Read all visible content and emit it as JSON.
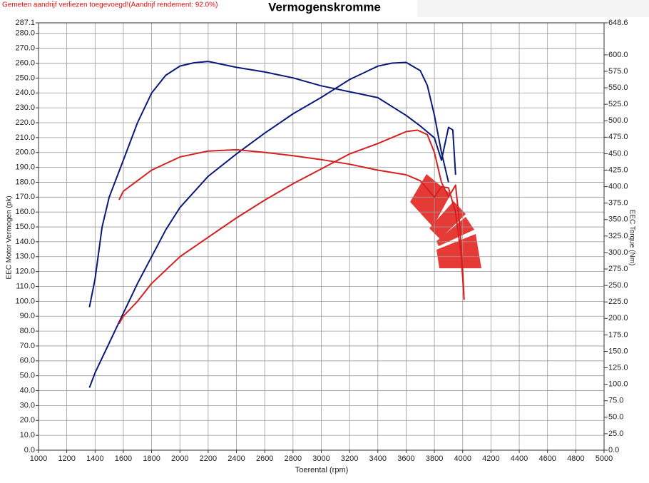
{
  "chart_data": {
    "type": "line",
    "note_text": "Gemeten aandrijf verliezen toegevoegd!(Aandrijf rendement: 92.0%)",
    "title": "Vermogenskromme",
    "x_label": "Toerental (rpm)",
    "y_label": "EEC Motor Vermogen (pk)",
    "y2_label": "EEC Torque (Nm)",
    "grid": true,
    "xlim": [
      1000,
      5000
    ],
    "xticks": [
      1000,
      1200,
      1400,
      1600,
      1800,
      2000,
      2200,
      2400,
      2600,
      2800,
      3000,
      3200,
      3400,
      3600,
      3800,
      4000,
      4200,
      4400,
      4600,
      4800,
      5000
    ],
    "ylim": [
      0,
      287.1
    ],
    "yticks": [
      {
        "value": 0,
        "label": "0.0"
      },
      {
        "value": 10,
        "label": "10.0"
      },
      {
        "value": 20,
        "label": "20.0"
      },
      {
        "value": 30,
        "label": "30.0"
      },
      {
        "value": 40,
        "label": "40.0"
      },
      {
        "value": 50,
        "label": "50.0"
      },
      {
        "value": 60,
        "label": "60.0"
      },
      {
        "value": 70,
        "label": "70.0"
      },
      {
        "value": 80,
        "label": "80.0"
      },
      {
        "value": 90,
        "label": "90.0"
      },
      {
        "value": 100,
        "label": "100.0"
      },
      {
        "value": 110,
        "label": "110.0"
      },
      {
        "value": 120,
        "label": "120.0"
      },
      {
        "value": 130,
        "label": "130.0"
      },
      {
        "value": 140,
        "label": "140.0"
      },
      {
        "value": 150,
        "label": "150.0"
      },
      {
        "value": 160,
        "label": "160.0"
      },
      {
        "value": 170,
        "label": "170.0"
      },
      {
        "value": 180,
        "label": "180.0"
      },
      {
        "value": 190,
        "label": "190.0"
      },
      {
        "value": 200,
        "label": "200.0"
      },
      {
        "value": 210,
        "label": "210.0"
      },
      {
        "value": 220,
        "label": "220.0"
      },
      {
        "value": 230,
        "label": "230.0"
      },
      {
        "value": 240,
        "label": "240.0"
      },
      {
        "value": 250,
        "label": "250.0"
      },
      {
        "value": 260,
        "label": "260.0"
      },
      {
        "value": 270,
        "label": "270.0"
      },
      {
        "value": 280,
        "label": "280.0"
      },
      287.1
    ],
    "y2lim": [
      0,
      648.6
    ],
    "y2ticks": [
      {
        "value": 0,
        "label": "0.0"
      },
      {
        "value": 25,
        "label": "25.0"
      },
      {
        "value": 50,
        "label": "50.0"
      },
      {
        "value": 75,
        "label": "75.0"
      },
      {
        "value": 100,
        "label": "100.0"
      },
      {
        "value": 125,
        "label": "125.0"
      },
      {
        "value": 150,
        "label": "150.0"
      },
      {
        "value": 175,
        "label": "175.0"
      },
      {
        "value": 200,
        "label": "200.0"
      },
      {
        "value": 225,
        "label": "225.0"
      },
      {
        "value": 250,
        "label": "250.0"
      },
      {
        "value": 275,
        "label": "275.0"
      },
      {
        "value": 300,
        "label": "300.0"
      },
      {
        "value": 325,
        "label": "325.0"
      },
      {
        "value": 350,
        "label": "350.0"
      },
      {
        "value": 375,
        "label": "375.0"
      },
      {
        "value": 400,
        "label": "400.0"
      },
      {
        "value": 425,
        "label": "425.0"
      },
      {
        "value": 450,
        "label": "450.0"
      },
      {
        "value": 475,
        "label": "475.0"
      },
      {
        "value": 500,
        "label": "500.0"
      },
      {
        "value": 525,
        "label": "525.0"
      },
      {
        "value": 550,
        "label": "550.0"
      },
      {
        "value": 575,
        "label": "575.0"
      },
      {
        "value": 600,
        "label": "600.0"
      },
      648.6
    ],
    "series": [
      {
        "color": "#0a1a7a",
        "axis": "y2",
        "x": [
          1360,
          1400,
          1450,
          1500,
          1600,
          1700,
          1800,
          1900,
          2000,
          2100,
          2200,
          2400,
          2600,
          2800,
          3000,
          3200,
          3400,
          3600,
          3700,
          3800,
          3850,
          3900,
          3930,
          3950
        ],
        "values": [
          217,
          260,
          339,
          384,
          440,
          497,
          542,
          569,
          583,
          588,
          590,
          581,
          574,
          565,
          553,
          544,
          535,
          508,
          492,
          474,
          440,
          490,
          486,
          418
        ]
      },
      {
        "color": "#0a1a7a",
        "x": [
          1360,
          1400,
          1500,
          1600,
          1700,
          1800,
          1900,
          2000,
          2200,
          2400,
          2600,
          2800,
          3000,
          3200,
          3400,
          3500,
          3600,
          3700,
          3750,
          3800,
          3850,
          3900
        ],
        "values": [
          42,
          52,
          72,
          92,
          112,
          130,
          148,
          163,
          184,
          199,
          213,
          226,
          237,
          249,
          258,
          260,
          260.5,
          255,
          245,
          225,
          200,
          180
        ]
      },
      {
        "color": "#d42020",
        "axis": "y2",
        "x": [
          1570,
          1600,
          1800,
          2000,
          2200,
          2400,
          2600,
          2800,
          3000,
          3200,
          3400,
          3600,
          3700,
          3800,
          3850,
          3900,
          3950,
          3990,
          4010
        ],
        "values": [
          380,
          393,
          425,
          445,
          454,
          456,
          452,
          447,
          441,
          434,
          425,
          418,
          409,
          384,
          400,
          398,
          361,
          294,
          230
        ]
      },
      {
        "color": "#d42020",
        "x": [
          1570,
          1600,
          1700,
          1800,
          2000,
          2200,
          2400,
          2600,
          2800,
          3000,
          3200,
          3400,
          3600,
          3680,
          3750,
          3800,
          3850,
          3900,
          3950,
          3980,
          4000,
          4010
        ],
        "values": [
          85,
          90,
          100,
          112,
          130,
          143,
          156,
          168,
          179,
          189,
          199,
          206,
          214,
          215,
          212,
          200,
          180,
          170,
          178,
          150,
          120,
          101
        ]
      }
    ]
  }
}
